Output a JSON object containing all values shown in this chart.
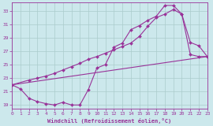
{
  "xlabel": "Windchill (Refroidissement éolien,°C)",
  "bg_color": "#cce8ec",
  "grid_color": "#aacccc",
  "line_color": "#993399",
  "xlim": [
    0,
    23
  ],
  "ylim": [
    18.5,
    34.2
  ],
  "xticks": [
    0,
    1,
    2,
    3,
    4,
    5,
    6,
    7,
    8,
    9,
    10,
    11,
    12,
    13,
    14,
    15,
    16,
    17,
    18,
    19,
    20,
    21,
    22,
    23
  ],
  "yticks": [
    19,
    21,
    23,
    25,
    27,
    29,
    31,
    33
  ],
  "line1_x": [
    0,
    1,
    2,
    3,
    4,
    5,
    6,
    7,
    8,
    9,
    10,
    11,
    12,
    13,
    14,
    15,
    16,
    17,
    18,
    19,
    20,
    21,
    22,
    23
  ],
  "line1_y": [
    22.0,
    21.4,
    20.0,
    19.5,
    19.2,
    19.0,
    19.4,
    19.0,
    19.0,
    21.3,
    24.5,
    25.0,
    27.6,
    28.2,
    30.2,
    30.8,
    31.6,
    32.2,
    33.8,
    33.8,
    32.5,
    28.3,
    27.8,
    26.2
  ],
  "line2_x": [
    0,
    2,
    3,
    4,
    5,
    6,
    7,
    8,
    9,
    10,
    11,
    12,
    13,
    14,
    15,
    16,
    17,
    18,
    19,
    20,
    21,
    22,
    23
  ],
  "line2_y": [
    22.0,
    22.7,
    23.0,
    23.3,
    23.7,
    24.2,
    24.7,
    25.2,
    25.8,
    26.2,
    26.7,
    27.2,
    27.7,
    28.2,
    29.2,
    30.7,
    32.0,
    32.5,
    33.2,
    32.5,
    26.5,
    26.2,
    26.2
  ],
  "line3_x": [
    0,
    23
  ],
  "line3_y": [
    22.0,
    26.2
  ]
}
